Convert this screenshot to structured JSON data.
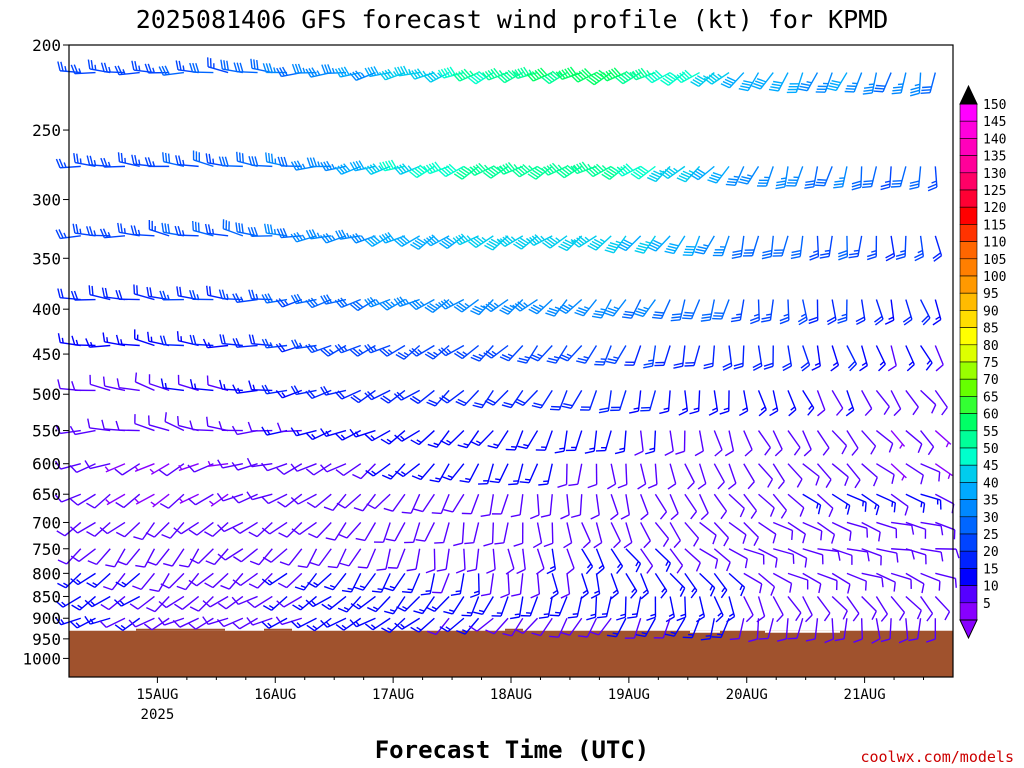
{
  "chart_data": {
    "type": "wind-barb",
    "title": "2025081406 GFS forecast wind profile (kt) for KPMD",
    "xlabel": "Forecast Time (UTC)",
    "ylabel": "",
    "x_tick_labels": [
      "15AUG",
      "16AUG",
      "17AUG",
      "18AUG",
      "19AUG",
      "20AUG",
      "21AUG"
    ],
    "x_year_label": "2025",
    "y_tick_labels": [
      "200",
      "250",
      "300",
      "350",
      "400",
      "450",
      "500",
      "550",
      "600",
      "650",
      "700",
      "750",
      "800",
      "850",
      "900",
      "950",
      "1000"
    ],
    "y_scale": "log",
    "ylim": [
      1050,
      200
    ],
    "x_range_days": [
      14.25,
      21.75
    ],
    "pressure_levels": [
      215,
      275,
      330,
      390,
      440,
      495,
      550,
      600,
      650,
      700,
      750,
      800,
      850,
      900
    ],
    "surface_pressure_hpa": 930,
    "colorbar": {
      "units": "kt",
      "labels": [
        "150",
        "145",
        "140",
        "135",
        "130",
        "125",
        "120",
        "115",
        "110",
        "105",
        "100",
        "95",
        "90",
        "85",
        "80",
        "75",
        "70",
        "65",
        "60",
        "55",
        "50",
        "45",
        "40",
        "35",
        "30",
        "25",
        "20",
        "15",
        "10",
        "5"
      ],
      "colors": [
        "#ff00ff",
        "#ff00dd",
        "#ff00bb",
        "#ff0099",
        "#ff0066",
        "#ff0033",
        "#ff0000",
        "#ff3300",
        "#ff6600",
        "#ff7f00",
        "#ff9900",
        "#ffbb00",
        "#ffdd00",
        "#ffff00",
        "#ddff00",
        "#99ff00",
        "#66ff00",
        "#33ff33",
        "#00ff66",
        "#00ff99",
        "#00ffcc",
        "#00ccee",
        "#00aaff",
        "#0088ff",
        "#0066ff",
        "#0044ff",
        "#0022ff",
        "#0000ff",
        "#5500ff",
        "#8800ff"
      ]
    },
    "wind_summary": [
      {
        "level": 215,
        "speed_kt": [
          25,
          25,
          30,
          35,
          45,
          55,
          60,
          50,
          40,
          35,
          30
        ],
        "dir_deg": [
          270,
          270,
          280,
          260,
          250,
          245,
          245,
          240,
          210,
          200,
          190
        ]
      },
      {
        "level": 275,
        "speed_kt": [
          25,
          25,
          30,
          35,
          50,
          55,
          55,
          45,
          35,
          30,
          25
        ],
        "dir_deg": [
          270,
          280,
          280,
          260,
          245,
          240,
          240,
          230,
          200,
          190,
          180
        ]
      },
      {
        "level": 330,
        "speed_kt": [
          25,
          25,
          30,
          35,
          40,
          45,
          45,
          40,
          30,
          25,
          20
        ],
        "dir_deg": [
          270,
          280,
          280,
          255,
          240,
          235,
          230,
          210,
          190,
          180,
          170
        ]
      },
      {
        "level": 390,
        "speed_kt": [
          20,
          20,
          25,
          30,
          35,
          35,
          35,
          30,
          25,
          20,
          15
        ],
        "dir_deg": [
          270,
          280,
          270,
          250,
          240,
          230,
          220,
          200,
          180,
          170,
          160
        ]
      },
      {
        "level": 440,
        "speed_kt": [
          15,
          15,
          20,
          25,
          25,
          25,
          25,
          20,
          20,
          15,
          10
        ],
        "dir_deg": [
          270,
          280,
          270,
          250,
          235,
          225,
          210,
          190,
          170,
          160,
          150
        ]
      },
      {
        "level": 495,
        "speed_kt": [
          10,
          10,
          15,
          20,
          20,
          20,
          20,
          15,
          15,
          10,
          10
        ],
        "dir_deg": [
          270,
          290,
          270,
          250,
          230,
          220,
          200,
          180,
          160,
          150,
          140
        ]
      },
      {
        "level": 550,
        "speed_kt": [
          10,
          10,
          10,
          15,
          15,
          15,
          15,
          10,
          10,
          10,
          5
        ],
        "dir_deg": [
          260,
          290,
          270,
          250,
          230,
          210,
          190,
          170,
          150,
          140,
          130
        ]
      },
      {
        "level": 600,
        "speed_kt": [
          10,
          5,
          10,
          10,
          15,
          15,
          10,
          10,
          10,
          10,
          5
        ],
        "dir_deg": [
          250,
          240,
          260,
          240,
          220,
          200,
          180,
          160,
          140,
          130,
          120
        ]
      },
      {
        "level": 650,
        "speed_kt": [
          10,
          5,
          10,
          10,
          10,
          10,
          10,
          10,
          10,
          15,
          10
        ],
        "dir_deg": [
          240,
          230,
          250,
          230,
          210,
          190,
          170,
          150,
          130,
          120,
          110
        ]
      },
      {
        "level": 700,
        "speed_kt": [
          10,
          10,
          10,
          10,
          10,
          10,
          10,
          10,
          10,
          10,
          10
        ],
        "dir_deg": [
          240,
          220,
          240,
          220,
          200,
          180,
          160,
          140,
          120,
          110,
          100
        ]
      },
      {
        "level": 750,
        "speed_kt": [
          10,
          10,
          10,
          10,
          10,
          10,
          15,
          10,
          10,
          10,
          10
        ],
        "dir_deg": [
          230,
          210,
          230,
          210,
          190,
          170,
          150,
          130,
          110,
          100,
          100
        ]
      },
      {
        "level": 800,
        "speed_kt": [
          15,
          10,
          10,
          15,
          15,
          10,
          15,
          15,
          10,
          10,
          10
        ],
        "dir_deg": [
          230,
          220,
          230,
          220,
          200,
          180,
          160,
          140,
          120,
          110,
          110
        ]
      },
      {
        "level": 850,
        "speed_kt": [
          15,
          10,
          10,
          15,
          15,
          15,
          15,
          15,
          10,
          10,
          10
        ],
        "dir_deg": [
          240,
          230,
          240,
          230,
          220,
          200,
          190,
          170,
          150,
          140,
          140
        ]
      },
      {
        "level": 900,
        "speed_kt": [
          15,
          10,
          10,
          15,
          15,
          10,
          10,
          15,
          10,
          10,
          10
        ],
        "dir_deg": [
          250,
          240,
          250,
          240,
          230,
          220,
          210,
          200,
          190,
          180,
          180
        ]
      }
    ]
  },
  "credit": "coolwx.com/models"
}
